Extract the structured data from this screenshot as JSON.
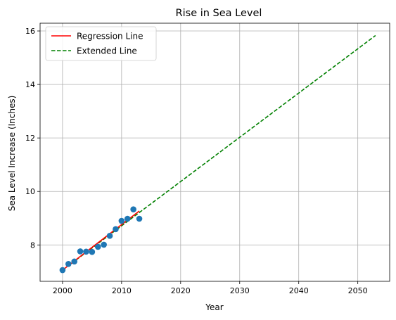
{
  "chart_data": {
    "type": "scatter",
    "title": "Rise in Sea Level",
    "xlabel": "Year",
    "ylabel": "Sea Level Increase (Inches)",
    "xlim": [
      1996.2,
      2055.4
    ],
    "ylim": [
      6.64,
      16.29
    ],
    "grid": true,
    "legend_position": "top-left",
    "x_ticks": [
      2000,
      2010,
      2020,
      2030,
      2040,
      2050
    ],
    "y_ticks": [
      8,
      10,
      12,
      14,
      16
    ],
    "scatter": {
      "color": "#1f77b4",
      "points": [
        {
          "x": 2000,
          "y": 7.06
        },
        {
          "x": 2001,
          "y": 7.29
        },
        {
          "x": 2002,
          "y": 7.38
        },
        {
          "x": 2003,
          "y": 7.76
        },
        {
          "x": 2004,
          "y": 7.75
        },
        {
          "x": 2005,
          "y": 7.74
        },
        {
          "x": 2006,
          "y": 7.93
        },
        {
          "x": 2007,
          "y": 8.01
        },
        {
          "x": 2008,
          "y": 8.34
        },
        {
          "x": 2009,
          "y": 8.59
        },
        {
          "x": 2010,
          "y": 8.9
        },
        {
          "x": 2011,
          "y": 8.98
        },
        {
          "x": 2012,
          "y": 9.33
        },
        {
          "x": 2013,
          "y": 8.98
        }
      ]
    },
    "series": [
      {
        "name": "Regression Line",
        "color": "#ff0000",
        "dash": "solid",
        "points": [
          {
            "x": 2000,
            "y": 7.06
          },
          {
            "x": 2013,
            "y": 9.27
          }
        ]
      },
      {
        "name": "Extended Line",
        "color": "#008000",
        "dash": "dashed",
        "points": [
          {
            "x": 2000,
            "y": 7.06
          },
          {
            "x": 2053,
            "y": 15.83
          }
        ]
      }
    ]
  }
}
